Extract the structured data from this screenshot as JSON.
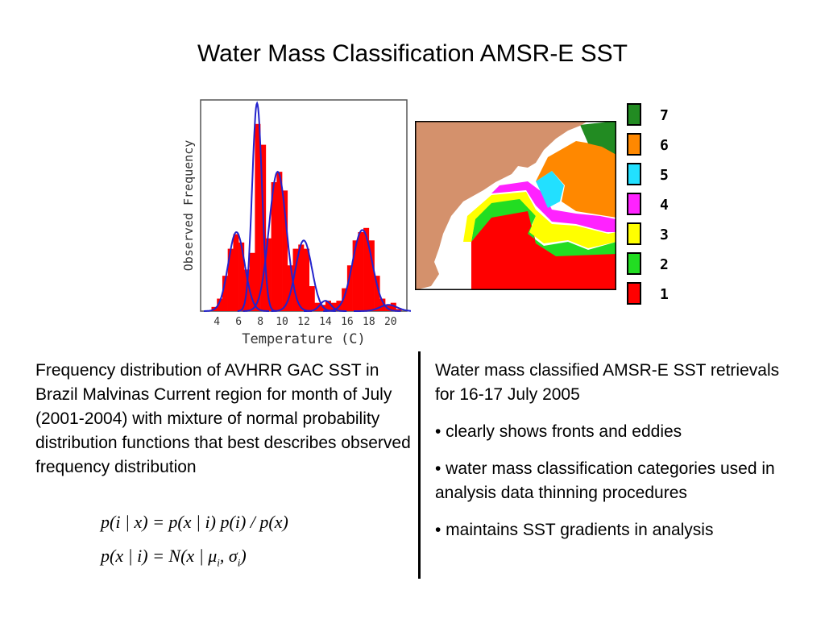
{
  "title": "Water Mass Classification AMSR-E SST",
  "colors": {
    "histogram_fill": "#ff0000",
    "gaussian_curve": "#2222cc",
    "land": "#d4916c",
    "class_colors": [
      "#ff0000",
      "#22dd22",
      "#ffff00",
      "#ff22ff",
      "#22e0ff",
      "#ff8800",
      "#228b22"
    ]
  },
  "chart_data": {
    "type": "bar",
    "title": "",
    "xlabel": "Temperature (C)",
    "ylabel": "Observed Frequency",
    "xlim": [
      2.5,
      21.5
    ],
    "ylim": [
      0,
      1
    ],
    "xticks": [
      "4",
      "6",
      "8",
      "10",
      "12",
      "14",
      "16",
      "18",
      "20"
    ],
    "xtick_values": [
      4,
      6,
      8,
      10,
      12,
      14,
      16,
      18,
      20
    ],
    "grid": false,
    "bins_x": [
      3.25,
      3.75,
      4.25,
      4.75,
      5.25,
      5.75,
      6.25,
      6.75,
      7.25,
      7.75,
      8.25,
      8.75,
      9.25,
      9.75,
      10.25,
      10.75,
      11.25,
      11.75,
      12.25,
      12.75,
      13.25,
      13.75,
      14.25,
      14.75,
      15.25,
      15.75,
      16.25,
      16.75,
      17.25,
      17.75,
      18.25,
      18.75,
      19.25,
      19.75,
      20.25,
      20.75
    ],
    "bins_values": [
      0.0,
      0.02,
      0.06,
      0.17,
      0.3,
      0.37,
      0.33,
      0.2,
      0.28,
      0.9,
      0.8,
      0.35,
      0.62,
      0.67,
      0.58,
      0.22,
      0.3,
      0.32,
      0.3,
      0.12,
      0.04,
      0.03,
      0.05,
      0.04,
      0.05,
      0.11,
      0.22,
      0.34,
      0.38,
      0.4,
      0.34,
      0.17,
      0.06,
      0.03,
      0.04,
      0.01
    ],
    "series": [
      {
        "mean": 5.8,
        "sigma": 0.75,
        "peak": 0.38
      },
      {
        "mean": 7.7,
        "sigma": 0.45,
        "peak": 1.0
      },
      {
        "mean": 9.6,
        "sigma": 0.8,
        "peak": 0.67
      },
      {
        "mean": 12.0,
        "sigma": 0.75,
        "peak": 0.34
      },
      {
        "mean": 14.0,
        "sigma": 0.5,
        "peak": 0.05
      },
      {
        "mean": 17.4,
        "sigma": 0.9,
        "peak": 0.39
      },
      {
        "mean": 19.8,
        "sigma": 0.8,
        "peak": 0.03
      }
    ]
  },
  "legend": {
    "classes": [
      "7",
      "6",
      "5",
      "4",
      "3",
      "2",
      "1"
    ]
  },
  "captions": {
    "left": "Frequency distribution of AVHRR GAC SST in Brazil Malvinas Current region for month of July (2001-2004) with mixture of normal probability distribution functions that best describes observed frequency distribution",
    "right_intro": "Water mass classified AMSR-E SST retrievals for 16-17 July 2005",
    "bullets": [
      "• clearly shows fronts and eddies",
      "• water mass classification categories used in analysis data thinning procedures",
      "• maintains SST gradients in analysis"
    ]
  },
  "formulas": {
    "bayes": "p(i | x) = p(x | i) p(i) / p(x)",
    "normal_prefix": "p(x | i) = N(x | μ",
    "normal_sub_mu": "i",
    "normal_mid": ", σ",
    "normal_sub_sigma": "i",
    "normal_suffix": ")"
  }
}
